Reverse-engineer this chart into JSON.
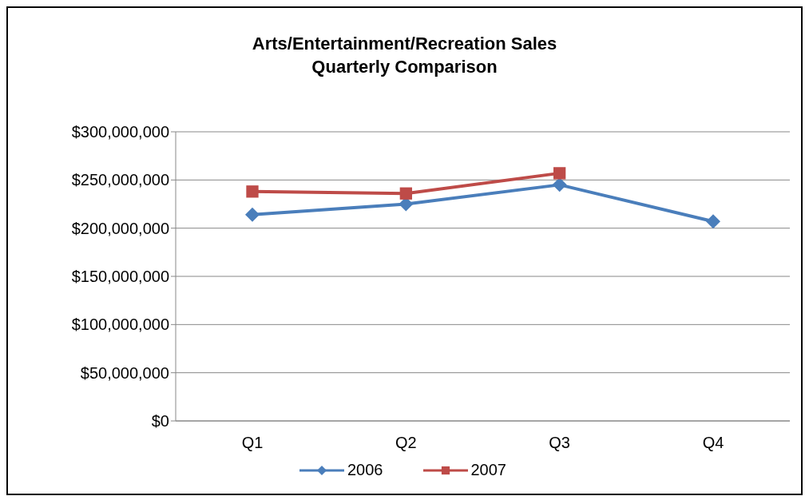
{
  "chart_data": {
    "type": "line",
    "title": "Arts/Entertainment/Recreation Sales",
    "subtitle": "Quarterly Comparison",
    "categories": [
      "Q1",
      "Q2",
      "Q3",
      "Q4"
    ],
    "series": [
      {
        "name": "2006",
        "color": "#4a7ebb",
        "marker": "diamond",
        "values": [
          214000000,
          225000000,
          245000000,
          207000000
        ]
      },
      {
        "name": "2007",
        "color": "#be4b48",
        "marker": "square",
        "values": [
          238000000,
          236000000,
          257000000,
          null
        ]
      }
    ],
    "ylim": [
      0,
      300000000
    ],
    "yticks": [
      {
        "value": 0,
        "label": "$0"
      },
      {
        "value": 50000000,
        "label": "$50,000,000"
      },
      {
        "value": 100000000,
        "label": "$100,000,000"
      },
      {
        "value": 150000000,
        "label": "$150,000,000"
      },
      {
        "value": 200000000,
        "label": "$200,000,000"
      },
      {
        "value": 250000000,
        "label": "$250,000,000"
      },
      {
        "value": 300000000,
        "label": "$300,000,000"
      }
    ],
    "grid": "y",
    "legend": "bottom",
    "line_style": "solid"
  }
}
